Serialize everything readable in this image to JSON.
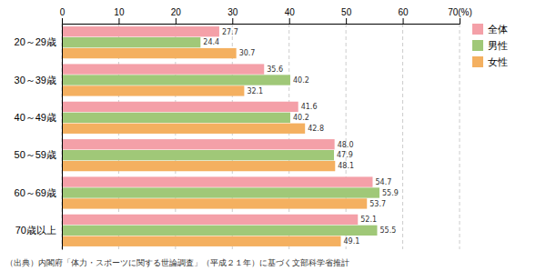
{
  "chart_data": {
    "type": "bar",
    "orientation": "horizontal",
    "categories": [
      "20～29歳",
      "30～39歳",
      "40～49歳",
      "50～59歳",
      "60～69歳",
      "70歳以上"
    ],
    "series": [
      {
        "name": "全体",
        "color": "#F4A0A8",
        "values": [
          27.7,
          35.6,
          41.6,
          48.0,
          54.7,
          52.1
        ],
        "value_labels": [
          "27.7",
          "35.6",
          "41.6",
          "48.0",
          "54.7",
          "52.1"
        ]
      },
      {
        "name": "男性",
        "color": "#A0C878",
        "values": [
          24.4,
          40.2,
          40.2,
          47.9,
          55.9,
          55.5
        ]
      },
      {
        "name": "女性",
        "color": "#F4B060",
        "values": [
          30.7,
          32.1,
          42.8,
          48.1,
          53.7,
          49.1
        ]
      }
    ],
    "xlim": [
      0,
      70
    ],
    "xticks": [
      0,
      10,
      20,
      30,
      40,
      50,
      60,
      {
        "value": 70,
        "label": "70(%)"
      }
    ],
    "grid": true,
    "legend": "right",
    "data_labels": true,
    "annotations": [
      "（出典）内閣府「体力・スポーツに関する世論調査」（平成２１年）に基づく文部科学省推計"
    ]
  }
}
